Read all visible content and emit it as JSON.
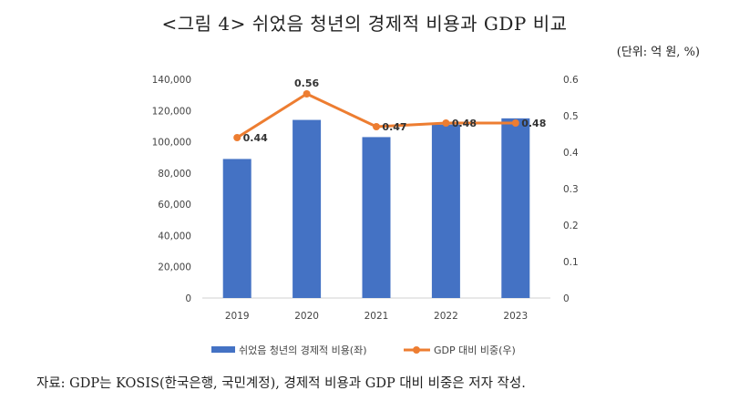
{
  "figure": {
    "title": "<그림 4> 쉬었음 청년의 경제적 비용과 GDP 비교",
    "unit": "(단위: 억 원, %)",
    "source": "자료: GDP는 KOSIS(한국은행, 국민계정), 경제적 비용과 GDP 대비 비중은 저자 작성."
  },
  "chart_data": {
    "type": "bar",
    "categories": [
      "2019",
      "2020",
      "2021",
      "2022",
      "2023"
    ],
    "series": [
      {
        "name": "쉬었음 청년의 경제적 비용(좌)",
        "type": "bar",
        "axis": "left",
        "color": "#4472C4",
        "values": [
          89000,
          114000,
          103000,
          111000,
          115000
        ]
      },
      {
        "name": "GDP 대비 비중(우)",
        "type": "line",
        "axis": "right",
        "color": "#ED7D31",
        "values": [
          0.44,
          0.56,
          0.47,
          0.48,
          0.48
        ],
        "labels": [
          "0.44",
          "0.56",
          "0.47",
          "0.48",
          "0.48"
        ]
      }
    ],
    "y_left": {
      "ylim": [
        0,
        140000
      ],
      "ticks": [
        "0",
        "20,000",
        "40,000",
        "60,000",
        "80,000",
        "100,000",
        "120,000",
        "140,000"
      ]
    },
    "y_right": {
      "ylim": [
        0,
        0.6
      ],
      "ticks": [
        "0",
        "0.1",
        "0.2",
        "0.3",
        "0.4",
        "0.5",
        "0.6"
      ]
    },
    "grid": false,
    "legend_position": "bottom"
  }
}
